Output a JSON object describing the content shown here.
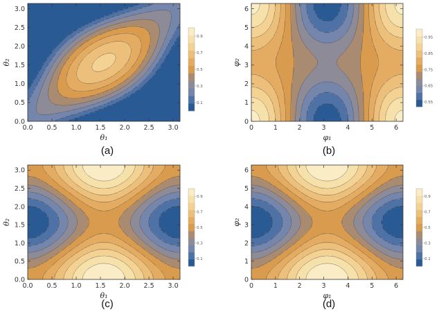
{
  "palette": [
    "#2a5a94",
    "#4f72a6",
    "#7586ad",
    "#8e8b99",
    "#a98b72",
    "#c7924e",
    "#d99b4e",
    "#e4ac63",
    "#ecbf7a",
    "#f3d293",
    "#f7e1ab",
    "#faedc6"
  ],
  "chart_data": [
    {
      "type": "contour",
      "panel": "(a)",
      "caption": "(a)",
      "xlabel": "θ₁",
      "ylabel": "θ₂",
      "xlim": [
        0,
        3.1416
      ],
      "ylim": [
        0,
        3.1416
      ],
      "xticks": [
        "0.0",
        "0.5",
        "1.0",
        "1.5",
        "2.0",
        "2.5",
        "3.0"
      ],
      "xtick_values": [
        0,
        0.5,
        1,
        1.5,
        2,
        2.5,
        3
      ],
      "yticks": [
        "0.0",
        "0.5",
        "1.0",
        "1.5",
        "2.0",
        "2.5",
        "3.0"
      ],
      "ytick_values": [
        0,
        0.5,
        1,
        1.5,
        2,
        2.5,
        3
      ],
      "legend_position": "right",
      "legend_range": [
        0,
        1
      ],
      "legend_ticks": [
        "0.9",
        "0.7",
        "0.5",
        "0.3",
        "0.1"
      ],
      "legend_tick_values": [
        0.9,
        0.7,
        0.5,
        0.3,
        0.1
      ],
      "plotted_function": "clip(0.75*cos(x-y) - 0.25*cos(x+y) - 0.25, 0, 1)",
      "levels": 11
    },
    {
      "type": "contour",
      "panel": "(b)",
      "caption": "(b)",
      "xlabel": "φ₁",
      "ylabel": "φ₂",
      "xlim": [
        0,
        6.2832
      ],
      "ylim": [
        0,
        6.2832
      ],
      "xticks": [
        "0",
        "1",
        "2",
        "3",
        "4",
        "5",
        "6"
      ],
      "xtick_values": [
        0,
        1,
        2,
        3,
        4,
        5,
        6
      ],
      "yticks": [
        "0",
        "1",
        "2",
        "3",
        "4",
        "5",
        "6"
      ],
      "ytick_values": [
        0,
        1,
        2,
        3,
        4,
        5,
        6
      ],
      "legend_position": "right",
      "legend_range": [
        0.52,
        1
      ],
      "legend_ticks": [
        "0.95",
        "0.85",
        "0.75",
        "0.65",
        "0.55"
      ],
      "legend_tick_values": [
        0.95,
        0.85,
        0.75,
        0.65,
        0.55
      ],
      "plotted_function": "0.75 + 0.14*cos(x) + 0.08*cos(x)*cos(y)",
      "levels": 11
    },
    {
      "type": "contour",
      "panel": "(c)",
      "caption": "(c)",
      "xlabel": "θ₁",
      "ylabel": "θ₂",
      "xlim": [
        0,
        3.1416
      ],
      "ylim": [
        0,
        3.1416
      ],
      "xticks": [
        "0.0",
        "0.5",
        "1.0",
        "1.5",
        "2.0",
        "2.5",
        "3.0"
      ],
      "xtick_values": [
        0,
        0.5,
        1,
        1.5,
        2,
        2.5,
        3
      ],
      "yticks": [
        "0.0",
        "0.5",
        "1.0",
        "1.5",
        "2.0",
        "2.5",
        "3.0"
      ],
      "ytick_values": [
        0,
        0.5,
        1,
        1.5,
        2,
        2.5,
        3
      ],
      "legend_position": "right",
      "legend_range": [
        0,
        1
      ],
      "legend_ticks": [
        "0.9",
        "0.7",
        "0.5",
        "0.3",
        "0.1"
      ],
      "legend_tick_values": [
        0.9,
        0.7,
        0.5,
        0.3,
        0.1
      ],
      "plotted_function": "0.5 + 0.5*(cos(2y) - cos(2x))/2",
      "levels": 11
    },
    {
      "type": "contour",
      "panel": "(d)",
      "caption": "(d)",
      "xlabel": "φ₁",
      "ylabel": "φ₂",
      "xlim": [
        0,
        6.2832
      ],
      "ylim": [
        0,
        6.2832
      ],
      "xticks": [
        "0",
        "1",
        "2",
        "3",
        "4",
        "5",
        "6"
      ],
      "xtick_values": [
        0,
        1,
        2,
        3,
        4,
        5,
        6
      ],
      "yticks": [
        "0",
        "1",
        "2",
        "3",
        "4",
        "5",
        "6"
      ],
      "ytick_values": [
        0,
        1,
        2,
        3,
        4,
        5,
        6
      ],
      "legend_position": "right",
      "legend_range": [
        0,
        1
      ],
      "legend_ticks": [
        "0.9",
        "0.7",
        "0.5",
        "0.3",
        "0.1"
      ],
      "legend_tick_values": [
        0.9,
        0.7,
        0.5,
        0.3,
        0.1
      ],
      "plotted_function": "0.5 + 0.5*(cos(y) - cos(x))/2",
      "levels": 11
    }
  ]
}
